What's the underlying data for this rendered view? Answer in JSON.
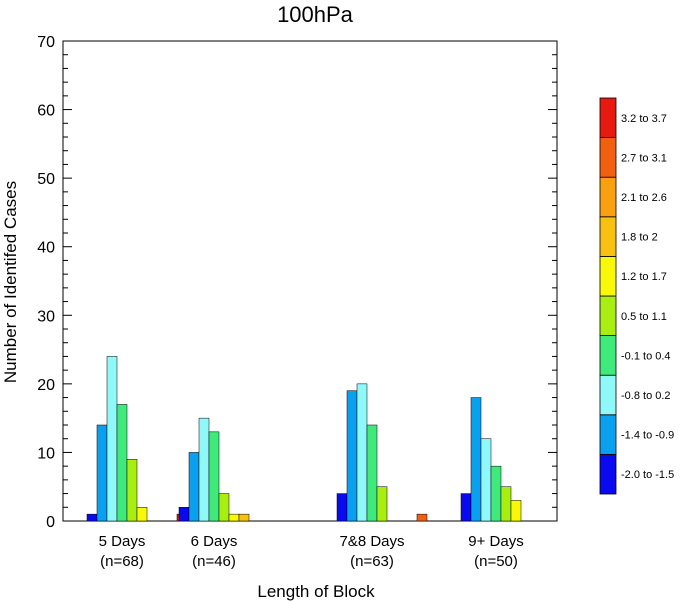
{
  "chart_data": {
    "type": "bar",
    "title": "100hPa",
    "xlabel": "Length of Block",
    "ylabel": "Number of Identifed Cases",
    "ylim": [
      0,
      70
    ],
    "yticks": [
      0,
      10,
      20,
      30,
      40,
      50,
      60,
      70
    ],
    "grid": false,
    "legend_position": "right",
    "categories": [
      {
        "name": "5 Days",
        "n": "(n=68)"
      },
      {
        "name": "6 Days",
        "n": "(n=46)"
      },
      {
        "name": "7&8 Days",
        "n": "(n=63)"
      },
      {
        "name": "9+ Days",
        "n": "(n=50)"
      }
    ],
    "series": [
      {
        "name": "-2.0 to -1.5",
        "color": "#0a0af0",
        "values": [
          1,
          2,
          4,
          4
        ]
      },
      {
        "name": "-1.4 to -0.9",
        "color": "#0aa0f0",
        "values": [
          14,
          10,
          19,
          18
        ]
      },
      {
        "name": "-0.8 to 0.2",
        "color": "#8ff8f8",
        "values": [
          24,
          15,
          20,
          12
        ]
      },
      {
        "name": "-0.1 to 0.4",
        "color": "#40ea7a",
        "values": [
          17,
          13,
          14,
          8
        ]
      },
      {
        "name": "0.5 to 1.1",
        "color": "#a8ee10",
        "values": [
          9,
          4,
          5,
          5
        ]
      },
      {
        "name": "1.2 to 1.7",
        "color": "#f8f808",
        "values": [
          2,
          1,
          0,
          3
        ]
      },
      {
        "name": "1.8 to 2",
        "color": "#f8c010",
        "values": [
          0,
          1,
          0,
          0
        ]
      },
      {
        "name": "2.1 to 2.6",
        "color": "#f8a010",
        "values": [
          0,
          0,
          0,
          0
        ]
      },
      {
        "name": "2.7 to 3.1",
        "color": "#f06010",
        "values": [
          0,
          0,
          1,
          0
        ]
      },
      {
        "name": "3.2 to 3.7",
        "color": "#e81a10",
        "values": [
          1,
          0,
          0,
          0
        ]
      }
    ]
  }
}
